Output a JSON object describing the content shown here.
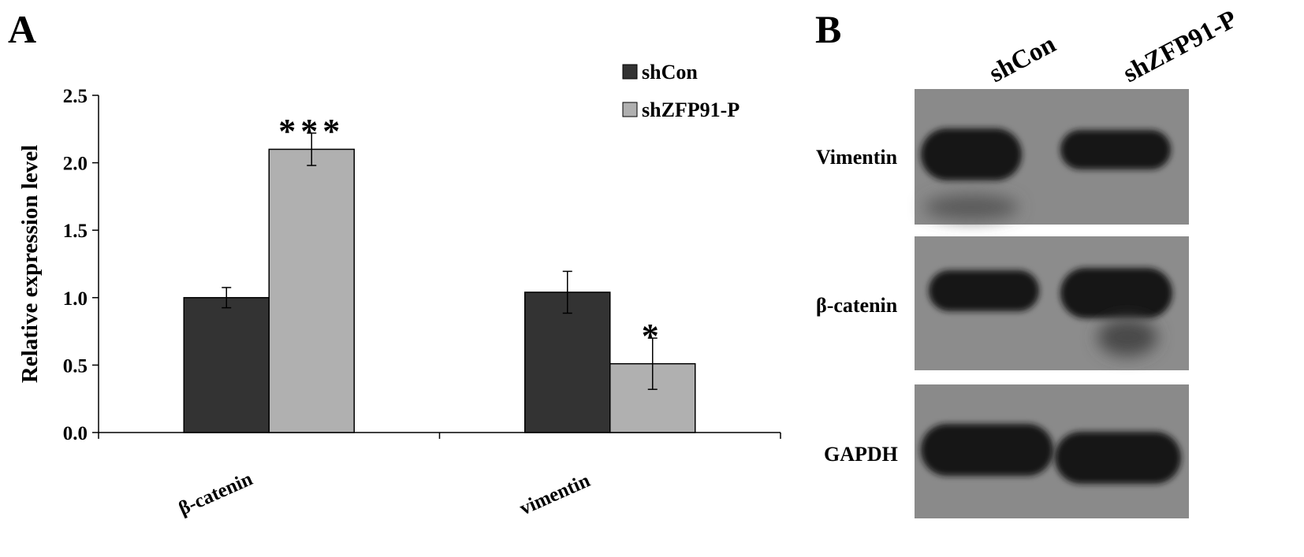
{
  "panels": {
    "a_label": "A",
    "b_label": "B"
  },
  "chart_data": {
    "type": "bar",
    "title": "",
    "xlabel": "",
    "ylabel": "Relative expression level",
    "ylim": [
      0,
      2.5
    ],
    "yticks": [
      "0.0",
      "0.5",
      "1.0",
      "1.5",
      "2.0",
      "2.5"
    ],
    "categories": [
      "β-catenin",
      "vimentin"
    ],
    "series": [
      {
        "name": "shCon",
        "values": [
          1.0,
          1.04
        ],
        "errors": [
          0.075,
          0.155
        ],
        "color": "#333333"
      },
      {
        "name": "shZFP91-P",
        "values": [
          2.1,
          0.51
        ],
        "errors": [
          0.12,
          0.19
        ],
        "color": "#b0b0b0"
      }
    ],
    "annotations": [
      {
        "category": 0,
        "series": 1,
        "text": "***"
      },
      {
        "category": 1,
        "series": 1,
        "text": "*"
      }
    ],
    "legend": "top-right",
    "grid": false
  },
  "western_blot": {
    "lanes": [
      "shCon",
      "shZFP91-P"
    ],
    "bands": [
      "Vimentin",
      "β-catenin",
      "GAPDH"
    ]
  }
}
